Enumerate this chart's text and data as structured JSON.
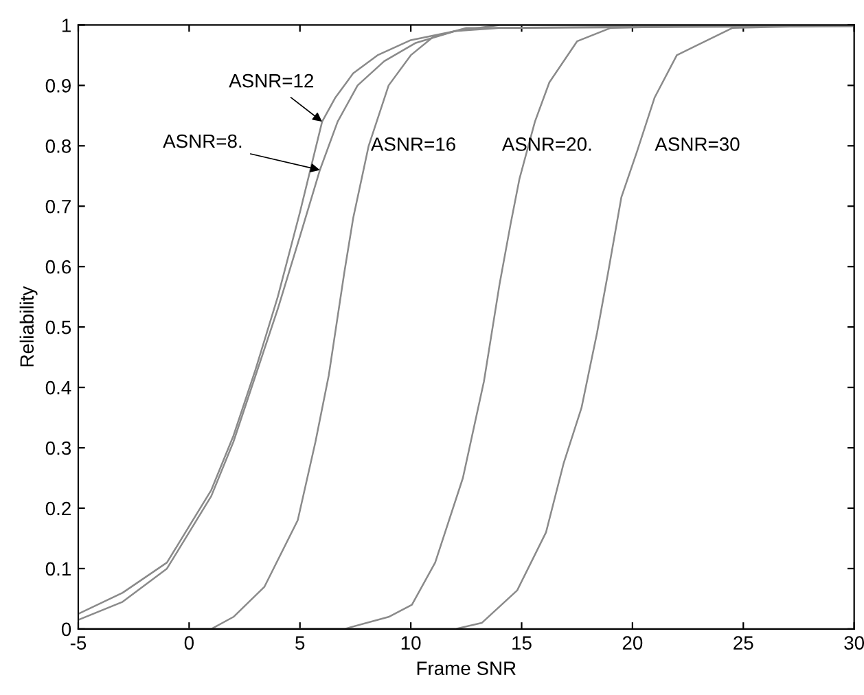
{
  "chart_data": {
    "type": "line",
    "xlabel": "Frame SNR",
    "ylabel": "Reliability",
    "xlim": [
      -5,
      30
    ],
    "ylim": [
      0,
      1
    ],
    "xticks": [
      -5,
      0,
      5,
      10,
      15,
      20,
      25,
      30
    ],
    "yticks": [
      0,
      0.1,
      0.2,
      0.3,
      0.4,
      0.5,
      0.6,
      0.7,
      0.8,
      0.9,
      1
    ],
    "grid": false,
    "marker": "none",
    "line_style": "solid",
    "series": [
      {
        "color": "#8a8a8a",
        "x": [
          -5,
          -3,
          -1,
          1,
          2,
          3,
          4,
          5,
          6.0,
          6.6,
          7.4,
          8.5,
          10,
          12,
          14,
          30
        ],
        "values": [
          0.025,
          0.06,
          0.11,
          0.23,
          0.32,
          0.43,
          0.55,
          0.69,
          0.84,
          0.88,
          0.92,
          0.95,
          0.975,
          0.99,
          1,
          1
        ]
      },
      {
        "color": "#8a8a8a",
        "x": [
          -5,
          -3,
          -1,
          1,
          2,
          3,
          4,
          5,
          5.9,
          6.7,
          7.6,
          8.8,
          10.2,
          12,
          14,
          30
        ],
        "values": [
          0.015,
          0.045,
          0.1,
          0.22,
          0.31,
          0.42,
          0.53,
          0.65,
          0.76,
          0.84,
          0.9,
          0.94,
          0.97,
          0.99,
          0.995,
          0.998
        ]
      },
      {
        "color": "#8a8a8a",
        "x": [
          -5,
          1,
          2,
          3.4,
          4.9,
          5.7,
          6.3,
          7.0,
          7.4,
          8.1,
          9,
          10,
          11,
          12.5,
          30
        ],
        "values": [
          0,
          0,
          0.02,
          0.07,
          0.18,
          0.31,
          0.42,
          0.59,
          0.68,
          0.8,
          0.9,
          0.95,
          0.98,
          0.995,
          1
        ]
      },
      {
        "color": "#8a8a8a",
        "x": [
          0,
          7,
          9,
          10.05,
          11.1,
          12.35,
          13.3,
          14,
          14.5,
          14.9,
          15.6,
          16.25,
          17.5,
          19,
          25
        ],
        "values": [
          0,
          0,
          0.02,
          0.04,
          0.11,
          0.25,
          0.41,
          0.57,
          0.67,
          0.745,
          0.84,
          0.905,
          0.973,
          0.995,
          1
        ]
      },
      {
        "color": "#8a8a8a",
        "x": [
          5,
          12,
          13.2,
          14.8,
          16.1,
          16.9,
          17.7,
          18.4,
          18.9,
          19.5,
          20.2,
          21,
          22,
          24.5,
          30
        ],
        "values": [
          0,
          0,
          0.01,
          0.064,
          0.16,
          0.275,
          0.366,
          0.49,
          0.59,
          0.715,
          0.79,
          0.88,
          0.95,
          0.995,
          1
        ]
      }
    ],
    "annotations": [
      {
        "text": "ASNR=12",
        "x": 6.0,
        "y": 0.84
      },
      {
        "text": "ASNR=8.",
        "x": 5.9,
        "y": 0.76
      },
      "ASNR=16",
      "ASNR=20.",
      "ASNR=30"
    ]
  }
}
